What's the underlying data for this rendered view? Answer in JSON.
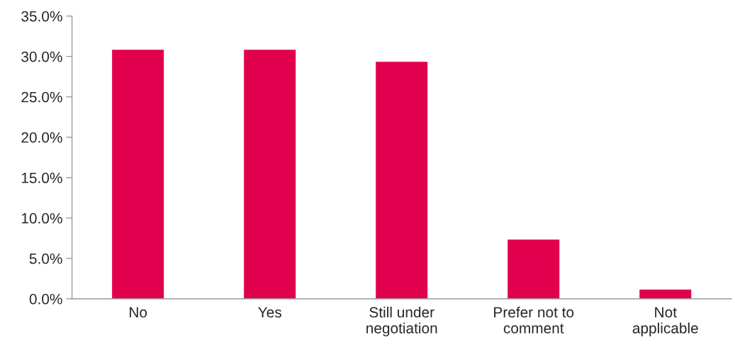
{
  "chart_data": {
    "type": "bar",
    "categories": [
      "No",
      "Yes",
      "Still under negotiation",
      "Prefer not to comment",
      "Not applicable"
    ],
    "values": [
      30.9,
      30.9,
      29.4,
      7.4,
      1.2
    ],
    "color": "#e0004d",
    "ylim": [
      0,
      35
    ],
    "yticks": [
      {
        "value": 0,
        "label": "0.0%"
      },
      {
        "value": 5,
        "label": "5.0%"
      },
      {
        "value": 10,
        "label": "10.0%"
      },
      {
        "value": 15,
        "label": "15.0%"
      },
      {
        "value": 20,
        "label": "20.0%"
      },
      {
        "value": 25,
        "label": "25.0%"
      },
      {
        "value": 30,
        "label": "30.0%"
      },
      {
        "value": 35,
        "label": "35.0%"
      }
    ],
    "grid": false,
    "legend": false
  }
}
